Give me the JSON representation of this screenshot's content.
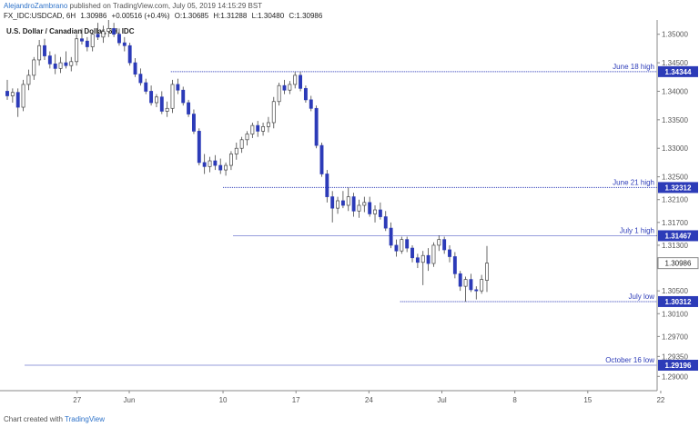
{
  "header": {
    "author": "AlejandroZambrano",
    "published_text": "published on TradingView.com, July 05, 2019 14:15:29 BST",
    "symbol": "FX_IDC:USDCAD, 6H",
    "last": "1.30986",
    "change": "+0.00516 (+0.4%)",
    "open": "O:1.30685",
    "high": "H:1.31288",
    "low": "L:1.30480",
    "close": "C:1.30986"
  },
  "chart_data": {
    "type": "candlestick",
    "title": "U.S. Dollar / Canadian Dollar, 6H, IDC",
    "ylim": [
      1.2875,
      1.3525
    ],
    "y_ticks": [
      "1.35000",
      "1.34500",
      "1.34000",
      "1.33500",
      "1.33000",
      "1.32500",
      "1.32100",
      "1.31700",
      "1.31300",
      "1.30500",
      "1.30100",
      "1.29700",
      "1.29350",
      "1.29000"
    ],
    "x_ticks": [
      {
        "label": "27",
        "day": -4
      },
      {
        "label": "Jun",
        "day": 1
      },
      {
        "label": "10",
        "day": 10
      },
      {
        "label": "17",
        "day": 17
      },
      {
        "label": "24",
        "day": 24
      },
      {
        "label": "Jul",
        "day": 31
      },
      {
        "label": "8",
        "day": 38
      },
      {
        "label": "15",
        "day": 45
      },
      {
        "label": "22",
        "day": 52
      }
    ],
    "levels": [
      {
        "label": "June 18 high",
        "value": "1.34344",
        "y": 1.34344,
        "from_day": 5
      },
      {
        "label": "June 21 high",
        "value": "1.32312",
        "y": 1.32312,
        "from_day": 10
      },
      {
        "label": "July 1 high",
        "value": "1.31467",
        "y": 1.31467,
        "from_day": 11
      },
      {
        "label": "July low",
        "value": "1.30312",
        "y": 1.30312,
        "from_day": 27
      },
      {
        "label": "October 16 low",
        "value": "1.29196",
        "y": 1.29196,
        "from_day": -9
      }
    ],
    "last_price": {
      "value": "1.30986",
      "y": 1.30986
    },
    "candles": [
      [
        1.34,
        1.342,
        1.3385,
        1.3392
      ],
      [
        1.3392,
        1.3405,
        1.338,
        1.3398
      ],
      [
        1.3398,
        1.3405,
        1.3355,
        1.3372
      ],
      [
        1.3372,
        1.342,
        1.3365,
        1.3412
      ],
      [
        1.3412,
        1.3438,
        1.3402,
        1.3428
      ],
      [
        1.3428,
        1.346,
        1.342,
        1.3455
      ],
      [
        1.3455,
        1.349,
        1.3445,
        1.348
      ],
      [
        1.348,
        1.3492,
        1.3455,
        1.3462
      ],
      [
        1.3462,
        1.347,
        1.344,
        1.3448
      ],
      [
        1.3448,
        1.3465,
        1.343,
        1.344
      ],
      [
        1.344,
        1.346,
        1.3432,
        1.345
      ],
      [
        1.345,
        1.347,
        1.344,
        1.3445
      ],
      [
        1.3445,
        1.346,
        1.3435,
        1.3452
      ],
      [
        1.3452,
        1.35,
        1.3445,
        1.3492
      ],
      [
        1.3492,
        1.351,
        1.3482,
        1.3488
      ],
      [
        1.3488,
        1.3495,
        1.347,
        1.3478
      ],
      [
        1.3478,
        1.3505,
        1.347,
        1.35
      ],
      [
        1.35,
        1.352,
        1.349,
        1.3495
      ],
      [
        1.3495,
        1.3515,
        1.3485,
        1.3505
      ],
      [
        1.3505,
        1.3525,
        1.3495,
        1.351
      ],
      [
        1.351,
        1.352,
        1.3495,
        1.35
      ],
      [
        1.35,
        1.351,
        1.348,
        1.3485
      ],
      [
        1.3485,
        1.3495,
        1.347,
        1.348
      ],
      [
        1.348,
        1.3485,
        1.3445,
        1.345
      ],
      [
        1.345,
        1.3458,
        1.3425,
        1.343
      ],
      [
        1.343,
        1.344,
        1.341,
        1.3415
      ],
      [
        1.3415,
        1.3422,
        1.3395,
        1.34
      ],
      [
        1.34,
        1.341,
        1.3375,
        1.338
      ],
      [
        1.338,
        1.3395,
        1.3372,
        1.339
      ],
      [
        1.339,
        1.34,
        1.336,
        1.3365
      ],
      [
        1.3365,
        1.3382,
        1.3355,
        1.337
      ],
      [
        1.337,
        1.342,
        1.3362,
        1.3412
      ],
      [
        1.3412,
        1.3422,
        1.3395,
        1.3402
      ],
      [
        1.3402,
        1.3408,
        1.3375,
        1.338
      ],
      [
        1.338,
        1.3385,
        1.3355,
        1.336
      ],
      [
        1.336,
        1.3368,
        1.3325,
        1.333
      ],
      [
        1.333,
        1.3335,
        1.327,
        1.3275
      ],
      [
        1.3275,
        1.329,
        1.3255,
        1.3268
      ],
      [
        1.3268,
        1.3285,
        1.3258,
        1.3278
      ],
      [
        1.3278,
        1.3288,
        1.3262,
        1.327
      ],
      [
        1.327,
        1.3282,
        1.3255,
        1.3262
      ],
      [
        1.3262,
        1.3275,
        1.3252,
        1.327
      ],
      [
        1.327,
        1.3295,
        1.3262,
        1.329
      ],
      [
        1.329,
        1.331,
        1.328,
        1.33
      ],
      [
        1.33,
        1.332,
        1.3292,
        1.3315
      ],
      [
        1.3315,
        1.333,
        1.3305,
        1.3325
      ],
      [
        1.3325,
        1.3345,
        1.3318,
        1.334
      ],
      [
        1.334,
        1.3348,
        1.332,
        1.333
      ],
      [
        1.333,
        1.3345,
        1.3322,
        1.3338
      ],
      [
        1.3338,
        1.3355,
        1.3328,
        1.3345
      ],
      [
        1.3345,
        1.339,
        1.3335,
        1.3382
      ],
      [
        1.3382,
        1.3415,
        1.3375,
        1.341
      ],
      [
        1.341,
        1.342,
        1.3395,
        1.3402
      ],
      [
        1.3402,
        1.3418,
        1.3395,
        1.3412
      ],
      [
        1.3412,
        1.3434,
        1.3405,
        1.3428
      ],
      [
        1.3428,
        1.3434,
        1.34,
        1.3405
      ],
      [
        1.3405,
        1.341,
        1.338,
        1.3385
      ],
      [
        1.3385,
        1.3392,
        1.3365,
        1.337
      ],
      [
        1.337,
        1.3375,
        1.33,
        1.3305
      ],
      [
        1.3305,
        1.331,
        1.325,
        1.3255
      ],
      [
        1.3255,
        1.3262,
        1.3205,
        1.3215
      ],
      [
        1.3215,
        1.3225,
        1.317,
        1.3195
      ],
      [
        1.3195,
        1.3215,
        1.3185,
        1.3208
      ],
      [
        1.3208,
        1.3225,
        1.3195,
        1.32
      ],
      [
        1.32,
        1.3231,
        1.319,
        1.3215
      ],
      [
        1.3215,
        1.3222,
        1.318,
        1.319
      ],
      [
        1.319,
        1.321,
        1.3178,
        1.32
      ],
      [
        1.32,
        1.3215,
        1.3188,
        1.3205
      ],
      [
        1.3205,
        1.3215,
        1.318,
        1.3185
      ],
      [
        1.3185,
        1.32,
        1.317,
        1.3192
      ],
      [
        1.3192,
        1.3205,
        1.3175,
        1.318
      ],
      [
        1.318,
        1.319,
        1.3155,
        1.316
      ],
      [
        1.316,
        1.317,
        1.3125,
        1.313
      ],
      [
        1.313,
        1.314,
        1.311,
        1.312
      ],
      [
        1.312,
        1.3145,
        1.3115,
        1.314
      ],
      [
        1.314,
        1.3145,
        1.3118,
        1.3125
      ],
      [
        1.3125,
        1.313,
        1.31,
        1.3108
      ],
      [
        1.3108,
        1.3115,
        1.309,
        1.31
      ],
      [
        1.31,
        1.312,
        1.306,
        1.3112
      ],
      [
        1.3112,
        1.3125,
        1.3085,
        1.3098
      ],
      [
        1.3098,
        1.3135,
        1.3092,
        1.313
      ],
      [
        1.313,
        1.3147,
        1.312,
        1.314
      ],
      [
        1.314,
        1.3145,
        1.3115,
        1.3122
      ],
      [
        1.3122,
        1.313,
        1.31,
        1.311
      ],
      [
        1.311,
        1.3118,
        1.3072,
        1.308
      ],
      [
        1.308,
        1.3085,
        1.305,
        1.3058
      ],
      [
        1.3058,
        1.3075,
        1.3031,
        1.307
      ],
      [
        1.307,
        1.308,
        1.3048,
        1.3052
      ],
      [
        1.3052,
        1.3058,
        1.3035,
        1.305
      ],
      [
        1.305,
        1.3078,
        1.3045,
        1.307
      ],
      [
        1.30685,
        1.31288,
        1.3048,
        1.30986
      ]
    ]
  },
  "footer": {
    "prefix": "Chart created with",
    "brand": "TradingView"
  },
  "colors": {
    "bull": "#ffffff",
    "bear": "#2c3bb8",
    "level": "#2c3bb8",
    "axis": "#555555"
  }
}
